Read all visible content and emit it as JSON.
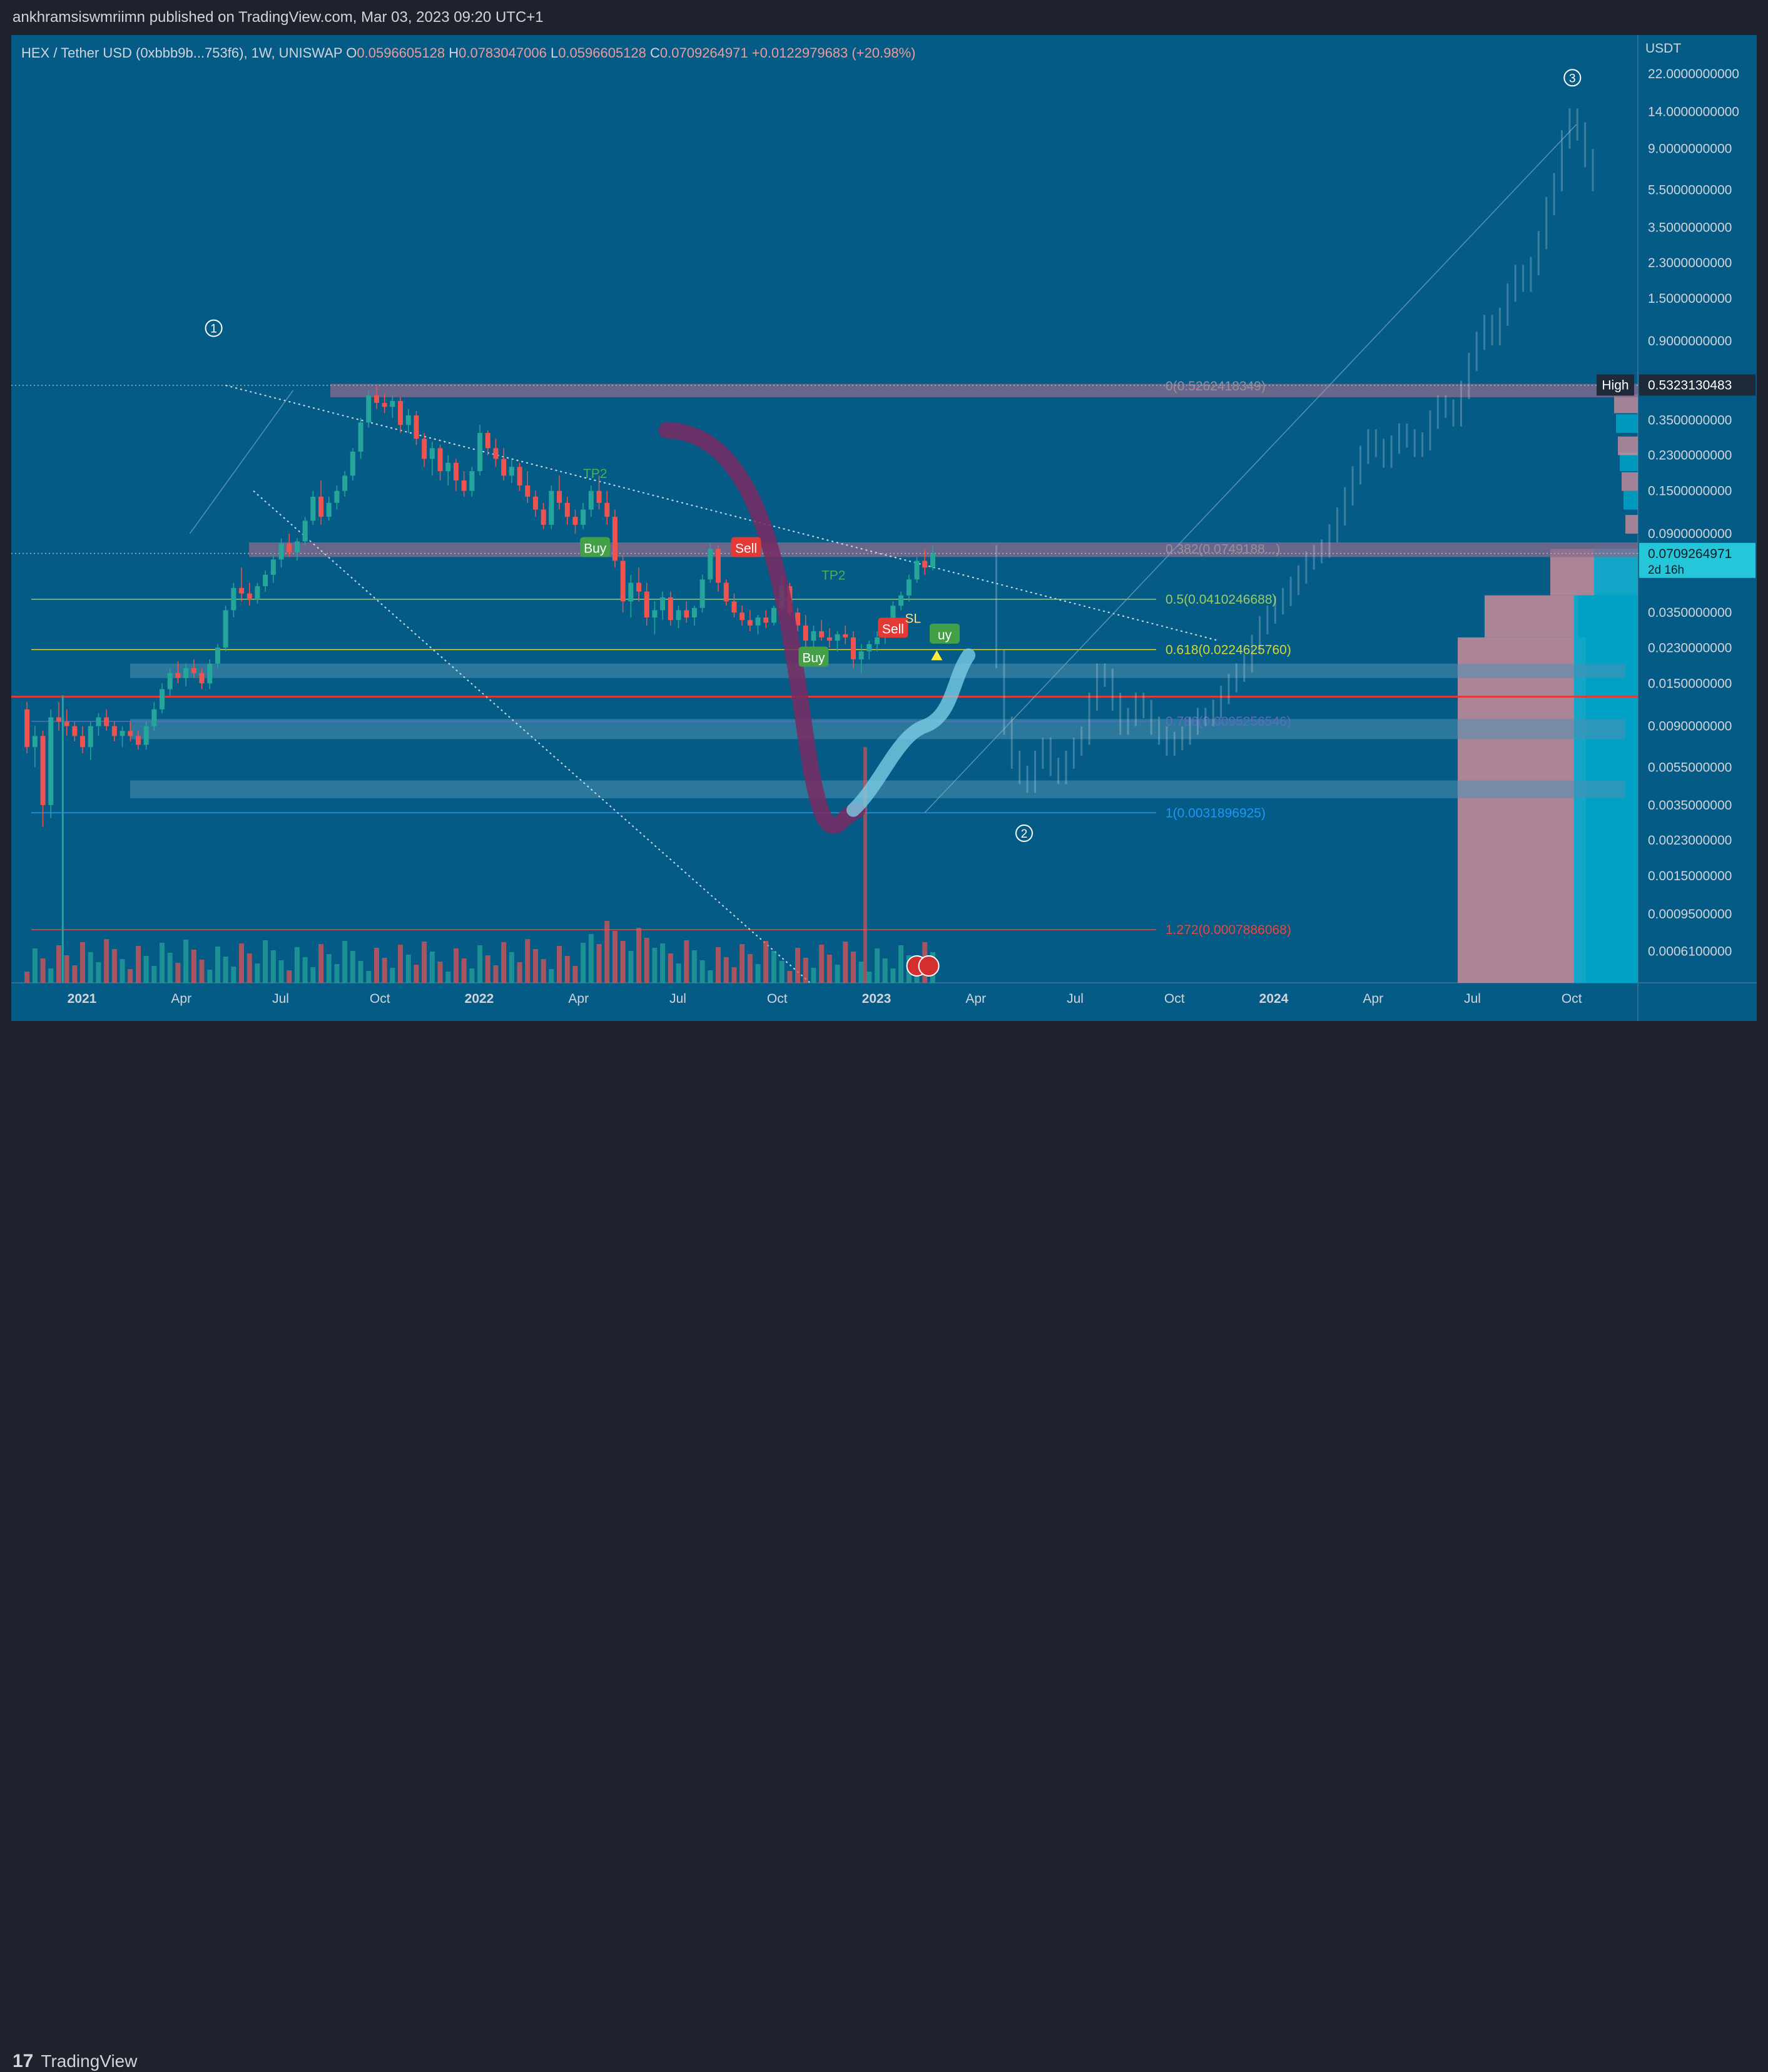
{
  "header": {
    "publisher": "ankhramsiswmriimn published on TradingView.com, Mar 03, 2023 09:20 UTC+1"
  },
  "symbol": {
    "name": "HEX / Tether USD (0xbbb9b...753f6), 1W, UNISWAP",
    "open_label": "O",
    "open": "0.0596605128",
    "high_label": "H",
    "high": "0.0783047006",
    "low_label": "L",
    "low": "0.0596605128",
    "close_label": "C",
    "close": "0.0709264971",
    "change": "+0.0122979683 (+20.98%)"
  },
  "footer": {
    "brand": "TradingView"
  },
  "colors": {
    "background": "#045b86",
    "up": "#26a69a",
    "down": "#ef5350",
    "band": "#8a6a8c",
    "pink_zone": "#c98c9b",
    "cyan_zone": "#00a9cc",
    "red_line": "#e53935",
    "fib_green": "#9ccc65",
    "fib_yellow": "#d4d63a",
    "fib_blue": "#2196f3",
    "fib_red": "#f44336"
  },
  "chart_data": {
    "type": "candlestick",
    "scale": "log",
    "ylim": [
      0.00045,
      32
    ],
    "x_axis_labels": [
      "2021",
      "Apr",
      "Jul",
      "Oct",
      "2022",
      "Apr",
      "Jul",
      "Oct",
      "2023",
      "Apr",
      "Jul",
      "Oct",
      "2024",
      "Apr",
      "Jul",
      "Oct"
    ],
    "y_axis_unit": "USDT",
    "y_axis_labels": [
      "22.0000000000",
      "14.0000000000",
      "9.0000000000",
      "5.5000000000",
      "3.5000000000",
      "2.3000000000",
      "1.5000000000",
      "0.9000000000",
      "0.3500000000",
      "0.2300000000",
      "0.1500000000",
      "0.0900000000",
      "0.0350000000",
      "0.0230000000",
      "0.0150000000",
      "0.0090000000",
      "0.0055000000",
      "0.0035000000",
      "0.0023000000",
      "0.0015000000",
      "0.0009500000",
      "0.0006100000"
    ],
    "y_axis_values": [
      22,
      14,
      9,
      5.5,
      3.5,
      2.3,
      1.5,
      0.9,
      0.35,
      0.23,
      0.15,
      0.09,
      0.035,
      0.023,
      0.015,
      0.009,
      0.0055,
      0.0035,
      0.0023,
      0.0015,
      0.00095,
      0.00061
    ],
    "price_labels": [
      {
        "label": "High",
        "value": "0.5323130483",
        "y": 0.5323130483
      },
      {
        "label": "",
        "value": "0.0709264971",
        "sub": "2d 16h",
        "y": 0.0709264971
      }
    ],
    "fib_levels": [
      {
        "text": "0(0.5262418349)",
        "value": 0.5262418349,
        "color": "#9a8f9c"
      },
      {
        "text": "0.382(0.0749188...)",
        "value": 0.0749188,
        "color": "#9a8f9c"
      },
      {
        "text": "0.5(0.0410246688)",
        "value": 0.0410246688,
        "color": "#9ccc65"
      },
      {
        "text": "0.618(0.0224625760)",
        "value": 0.022462576,
        "color": "#d4d63a"
      },
      {
        "text": "0.786(0.0095256546)",
        "value": 0.0095256546,
        "color": "#5c6bc0"
      },
      {
        "text": "1(0.0031896925)",
        "value": 0.0031896925,
        "color": "#2196f3"
      },
      {
        "text": "1.272(0.0007886068)",
        "value": 0.0007886068,
        "color": "#f44336"
      }
    ],
    "wave_labels": [
      "①",
      "②",
      "③"
    ],
    "signals": [
      {
        "text": "TP2",
        "t": 1.32,
        "v": 0.175,
        "kind": "tp"
      },
      {
        "text": "Buy",
        "t": 1.32,
        "v": 0.076,
        "kind": "buy"
      },
      {
        "text": "Sell",
        "t": 1.7,
        "v": 0.076,
        "kind": "sell"
      },
      {
        "text": "TP2",
        "t": 1.92,
        "v": 0.052,
        "kind": "tp"
      },
      {
        "text": "Buy",
        "t": 1.87,
        "v": 0.0205,
        "kind": "buy"
      },
      {
        "text": "Sell",
        "t": 2.07,
        "v": 0.029,
        "kind": "sell"
      },
      {
        "text": "SL",
        "t": 2.12,
        "v": 0.031,
        "kind": "sl"
      },
      {
        "text": "uy",
        "t": 2.2,
        "v": 0.027,
        "kind": "buy"
      }
    ],
    "ohlc": [
      [
        0.011,
        0.012,
        0.0065,
        0.007
      ],
      [
        0.007,
        0.009,
        0.0055,
        0.008
      ],
      [
        0.008,
        0.0085,
        0.0027,
        0.0035
      ],
      [
        0.0035,
        0.011,
        0.003,
        0.01
      ],
      [
        0.01,
        0.012,
        0.0085,
        0.0095
      ],
      [
        0.0095,
        0.011,
        0.008,
        0.009
      ],
      [
        0.009,
        0.0095,
        0.0075,
        0.008
      ],
      [
        0.008,
        0.009,
        0.0065,
        0.007
      ],
      [
        0.007,
        0.0095,
        0.006,
        0.009
      ],
      [
        0.009,
        0.0105,
        0.008,
        0.01
      ],
      [
        0.01,
        0.011,
        0.0085,
        0.009
      ],
      [
        0.009,
        0.0095,
        0.0075,
        0.008
      ],
      [
        0.008,
        0.009,
        0.007,
        0.0085
      ],
      [
        0.0085,
        0.0095,
        0.0075,
        0.008
      ],
      [
        0.008,
        0.0085,
        0.0068,
        0.0072
      ],
      [
        0.0072,
        0.0095,
        0.0068,
        0.009
      ],
      [
        0.009,
        0.012,
        0.0085,
        0.011
      ],
      [
        0.011,
        0.015,
        0.0105,
        0.014
      ],
      [
        0.014,
        0.018,
        0.013,
        0.017
      ],
      [
        0.017,
        0.0195,
        0.015,
        0.016
      ],
      [
        0.016,
        0.019,
        0.0145,
        0.018
      ],
      [
        0.018,
        0.02,
        0.016,
        0.017
      ],
      [
        0.017,
        0.018,
        0.014,
        0.015
      ],
      [
        0.015,
        0.02,
        0.014,
        0.019
      ],
      [
        0.019,
        0.024,
        0.018,
        0.023
      ],
      [
        0.023,
        0.038,
        0.022,
        0.036
      ],
      [
        0.036,
        0.05,
        0.033,
        0.047
      ],
      [
        0.047,
        0.06,
        0.04,
        0.044
      ],
      [
        0.044,
        0.05,
        0.038,
        0.041
      ],
      [
        0.041,
        0.05,
        0.039,
        0.048
      ],
      [
        0.048,
        0.058,
        0.045,
        0.055
      ],
      [
        0.055,
        0.07,
        0.05,
        0.066
      ],
      [
        0.066,
        0.085,
        0.06,
        0.08
      ],
      [
        0.08,
        0.09,
        0.068,
        0.072
      ],
      [
        0.072,
        0.085,
        0.065,
        0.082
      ],
      [
        0.082,
        0.11,
        0.078,
        0.105
      ],
      [
        0.105,
        0.15,
        0.1,
        0.14
      ],
      [
        0.14,
        0.17,
        0.1,
        0.11
      ],
      [
        0.11,
        0.14,
        0.105,
        0.13
      ],
      [
        0.13,
        0.16,
        0.12,
        0.15
      ],
      [
        0.15,
        0.19,
        0.14,
        0.18
      ],
      [
        0.18,
        0.25,
        0.17,
        0.24
      ],
      [
        0.24,
        0.36,
        0.22,
        0.34
      ],
      [
        0.34,
        0.5,
        0.32,
        0.47
      ],
      [
        0.47,
        0.53,
        0.4,
        0.43
      ],
      [
        0.43,
        0.48,
        0.38,
        0.41
      ],
      [
        0.41,
        0.47,
        0.36,
        0.44
      ],
      [
        0.44,
        0.46,
        0.3,
        0.33
      ],
      [
        0.33,
        0.4,
        0.3,
        0.37
      ],
      [
        0.37,
        0.39,
        0.26,
        0.28
      ],
      [
        0.28,
        0.3,
        0.2,
        0.22
      ],
      [
        0.22,
        0.27,
        0.18,
        0.25
      ],
      [
        0.25,
        0.26,
        0.17,
        0.19
      ],
      [
        0.19,
        0.23,
        0.16,
        0.21
      ],
      [
        0.21,
        0.22,
        0.15,
        0.17
      ],
      [
        0.17,
        0.19,
        0.14,
        0.15
      ],
      [
        0.15,
        0.2,
        0.14,
        0.19
      ],
      [
        0.19,
        0.33,
        0.18,
        0.3
      ],
      [
        0.3,
        0.31,
        0.23,
        0.25
      ],
      [
        0.25,
        0.28,
        0.2,
        0.22
      ],
      [
        0.22,
        0.25,
        0.17,
        0.18
      ],
      [
        0.18,
        0.22,
        0.165,
        0.2
      ],
      [
        0.2,
        0.21,
        0.15,
        0.16
      ],
      [
        0.16,
        0.19,
        0.13,
        0.14
      ],
      [
        0.14,
        0.15,
        0.11,
        0.12
      ],
      [
        0.12,
        0.13,
        0.095,
        0.1
      ],
      [
        0.1,
        0.16,
        0.095,
        0.15
      ],
      [
        0.15,
        0.18,
        0.12,
        0.13
      ],
      [
        0.13,
        0.14,
        0.1,
        0.11
      ],
      [
        0.11,
        0.12,
        0.09,
        0.1
      ],
      [
        0.1,
        0.13,
        0.095,
        0.12
      ],
      [
        0.12,
        0.16,
        0.11,
        0.15
      ],
      [
        0.15,
        0.18,
        0.12,
        0.13
      ],
      [
        0.13,
        0.15,
        0.1,
        0.11
      ],
      [
        0.11,
        0.12,
        0.06,
        0.065
      ],
      [
        0.065,
        0.07,
        0.035,
        0.04
      ],
      [
        0.04,
        0.055,
        0.033,
        0.05
      ],
      [
        0.05,
        0.06,
        0.04,
        0.045
      ],
      [
        0.045,
        0.05,
        0.03,
        0.033
      ],
      [
        0.033,
        0.04,
        0.027,
        0.036
      ],
      [
        0.036,
        0.045,
        0.032,
        0.042
      ],
      [
        0.042,
        0.045,
        0.03,
        0.032
      ],
      [
        0.032,
        0.038,
        0.029,
        0.036
      ],
      [
        0.036,
        0.04,
        0.031,
        0.033
      ],
      [
        0.033,
        0.038,
        0.03,
        0.037
      ],
      [
        0.037,
        0.055,
        0.035,
        0.052
      ],
      [
        0.052,
        0.08,
        0.05,
        0.075
      ],
      [
        0.075,
        0.078,
        0.045,
        0.05
      ],
      [
        0.05,
        0.052,
        0.038,
        0.04
      ],
      [
        0.04,
        0.044,
        0.033,
        0.035
      ],
      [
        0.035,
        0.038,
        0.03,
        0.032
      ],
      [
        0.032,
        0.036,
        0.028,
        0.03
      ],
      [
        0.03,
        0.034,
        0.027,
        0.033
      ],
      [
        0.033,
        0.036,
        0.029,
        0.031
      ],
      [
        0.031,
        0.038,
        0.03,
        0.037
      ],
      [
        0.037,
        0.055,
        0.035,
        0.048
      ],
      [
        0.048,
        0.05,
        0.033,
        0.035
      ],
      [
        0.035,
        0.037,
        0.028,
        0.03
      ],
      [
        0.03,
        0.034,
        0.022,
        0.025
      ],
      [
        0.025,
        0.03,
        0.023,
        0.028
      ],
      [
        0.028,
        0.032,
        0.025,
        0.026
      ],
      [
        0.026,
        0.029,
        0.023,
        0.025
      ],
      [
        0.025,
        0.028,
        0.022,
        0.027
      ],
      [
        0.027,
        0.03,
        0.024,
        0.026
      ],
      [
        0.026,
        0.028,
        0.018,
        0.02
      ],
      [
        0.02,
        0.024,
        0.017,
        0.022
      ],
      [
        0.022,
        0.025,
        0.02,
        0.024
      ],
      [
        0.024,
        0.028,
        0.022,
        0.026
      ],
      [
        0.026,
        0.03,
        0.024,
        0.028
      ],
      [
        0.028,
        0.04,
        0.026,
        0.038
      ],
      [
        0.038,
        0.045,
        0.036,
        0.043
      ],
      [
        0.043,
        0.055,
        0.04,
        0.052
      ],
      [
        0.052,
        0.068,
        0.05,
        0.065
      ],
      [
        0.065,
        0.075,
        0.055,
        0.06
      ],
      [
        0.06,
        0.078,
        0.058,
        0.071
      ]
    ],
    "projection": [
      0.02,
      0.009,
      0.006,
      0.005,
      0.0045,
      0.006,
      0.007,
      0.0055,
      0.005,
      0.006,
      0.007,
      0.008,
      0.012,
      0.017,
      0.016,
      0.012,
      0.009,
      0.01,
      0.012,
      0.011,
      0.009,
      0.008,
      0.007,
      0.0075,
      0.008,
      0.009,
      0.01,
      0.01,
      0.011,
      0.013,
      0.015,
      0.017,
      0.019,
      0.024,
      0.03,
      0.034,
      0.038,
      0.042,
      0.048,
      0.055,
      0.065,
      0.07,
      0.075,
      0.09,
      0.11,
      0.14,
      0.18,
      0.23,
      0.28,
      0.25,
      0.22,
      0.26,
      0.3,
      0.28,
      0.25,
      0.27,
      0.35,
      0.42,
      0.4,
      0.36,
      0.5,
      0.7,
      0.9,
      1.1,
      0.95,
      1.2,
      1.6,
      2.0,
      1.8,
      2.2,
      3.0,
      4.5,
      6.0,
      10.0,
      13.0,
      11.0,
      8.0,
      6.0
    ]
  }
}
